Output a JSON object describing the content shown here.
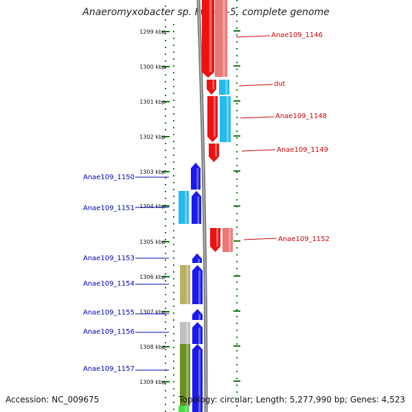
{
  "title": "Anaeromyxobacter sp. Fw109-5, complete genome",
  "footer": {
    "accession": "Accession: NC_009675",
    "topology": "Topology: circular; Length: 5,277,990 bp; Genes: 4,523"
  },
  "colors": {
    "red": "#ee1111",
    "pink": "#ee7777",
    "cyan": "#22bbee",
    "blue": "#1a1aee",
    "olive": "#bbb066",
    "gray": "#c0c0c0",
    "green": "#6b8e23",
    "lightgreen": "#44dd44",
    "tick_green": "#117711",
    "label_red": "#cc0000",
    "label_blue": "#0000bb"
  },
  "ticks": [
    "1299 kbp",
    "1300 kbp",
    "1301 kbp",
    "1302 kbp",
    "1303 kbp",
    "1304 kbp",
    "1305 kbp",
    "1306 kbp",
    "1307 kbp",
    "1308 kbp",
    "1309 kbp"
  ],
  "right_labels": [
    "Anae109_1146",
    "dut",
    "Anae109_1148",
    "Anae109_1149",
    "Anae109_1152"
  ],
  "left_labels": [
    "Anae109_1150",
    "Anae109_1151",
    "Anae109_1153",
    "Anae109_1154",
    "Anae109_1155",
    "Anae109_1156",
    "Anae109_1157"
  ]
}
